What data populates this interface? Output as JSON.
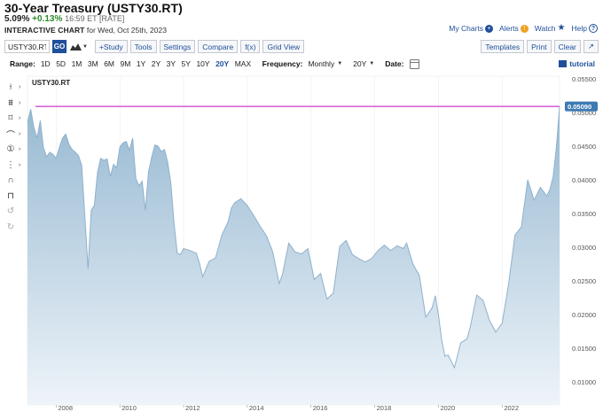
{
  "header": {
    "title": "30-Year Treasury (USTY30.RT)",
    "price": "5.09%",
    "change": "+0.13%",
    "time": "16:59 ET [RATE]",
    "subtitle_bold": "INTERACTIVE CHART",
    "subtitle_rest": "for Wed, Oct 25th, 2023"
  },
  "top_links": {
    "my_charts": "My Charts",
    "alerts": "Alerts",
    "watch": "Watch",
    "help": "Help"
  },
  "toolbar": {
    "symbol_value": "USTY30.RT",
    "go_label": "GO",
    "study_label": "+Study",
    "tools_label": "Tools",
    "settings_label": "Settings",
    "compare_label": "Compare",
    "fx_label": "f(x)",
    "grid_view_label": "Grid View",
    "templates_label": "Templates",
    "print_label": "Print",
    "clear_label": "Clear",
    "expand_label": "↗"
  },
  "range_bar": {
    "range_label": "Range:",
    "ranges": [
      "1D",
      "5D",
      "1M",
      "3M",
      "6M",
      "9M",
      "1Y",
      "2Y",
      "3Y",
      "5Y",
      "10Y",
      "20Y",
      "MAX"
    ],
    "active_range": "20Y",
    "frequency_label": "Frequency:",
    "frequency_value": "Monthly",
    "period_value": "20Y",
    "date_label": "Date:",
    "tutorial_label": "tutorial"
  },
  "left_tools": [
    "crosshair-icon",
    "drawing-tools-icon",
    "shapes-icon",
    "arc-icon",
    "annotation-icon",
    "fibonacci-icon",
    "magnet-icon",
    "lock-icon",
    "undo-icon",
    "redo-icon"
  ],
  "chart_data": {
    "type": "area",
    "symbol_label": "USTY30.RT",
    "x_ticks": [
      "2008",
      "2010",
      "2012",
      "2014",
      "2016",
      "2018",
      "2020",
      "2022"
    ],
    "y_ticks": [
      "0.05500",
      "0.05000",
      "0.04500",
      "0.04000",
      "0.03500",
      "0.03000",
      "0.02500",
      "0.02000",
      "0.01500",
      "0.01000"
    ],
    "ylim": [
      0.01,
      0.055
    ],
    "xlim": [
      2007.1,
      2023.8
    ],
    "last_value_label": "0.05090",
    "last_value": 0.0509,
    "colors": {
      "line": "#8fb1cc",
      "fill_top": "#97b9d2",
      "fill_bottom": "#eef4f9",
      "last_line": "#d45ad4",
      "last_badge": "#3d7ab3"
    },
    "x": [
      2007.1,
      2007.2,
      2007.3,
      2007.4,
      2007.5,
      2007.6,
      2007.7,
      2007.8,
      2007.9,
      2008.0,
      2008.1,
      2008.2,
      2008.3,
      2008.4,
      2008.5,
      2008.6,
      2008.7,
      2008.8,
      2008.9,
      2009.0,
      2009.1,
      2009.2,
      2009.3,
      2009.4,
      2009.5,
      2009.6,
      2009.7,
      2009.8,
      2009.9,
      2010.0,
      2010.1,
      2010.2,
      2010.3,
      2010.4,
      2010.5,
      2010.6,
      2010.7,
      2010.8,
      2010.9,
      2011.0,
      2011.1,
      2011.2,
      2011.3,
      2011.4,
      2011.5,
      2011.6,
      2011.7,
      2011.8,
      2011.9,
      2012.0,
      2012.2,
      2012.4,
      2012.5,
      2012.6,
      2012.8,
      2013.0,
      2013.2,
      2013.4,
      2013.5,
      2013.6,
      2013.8,
      2014.0,
      2014.2,
      2014.4,
      2014.6,
      2014.8,
      2015.0,
      2015.1,
      2015.3,
      2015.5,
      2015.7,
      2015.9,
      2016.1,
      2016.3,
      2016.5,
      2016.7,
      2016.9,
      2017.1,
      2017.3,
      2017.5,
      2017.7,
      2017.9,
      2018.1,
      2018.3,
      2018.5,
      2018.7,
      2018.9,
      2019.0,
      2019.2,
      2019.4,
      2019.6,
      2019.8,
      2019.9,
      2020.0,
      2020.1,
      2020.2,
      2020.3,
      2020.5,
      2020.7,
      2020.9,
      2021.0,
      2021.2,
      2021.4,
      2021.6,
      2021.8,
      2022.0,
      2022.2,
      2022.4,
      2022.6,
      2022.8,
      2023.0,
      2023.2,
      2023.4,
      2023.5,
      2023.6,
      2023.7,
      2023.8
    ],
    "y": [
      0.0485,
      0.0505,
      0.0478,
      0.0462,
      0.0488,
      0.0448,
      0.0434,
      0.0441,
      0.0438,
      0.0432,
      0.0448,
      0.0462,
      0.0468,
      0.0453,
      0.0445,
      0.0441,
      0.0436,
      0.0422,
      0.0345,
      0.0268,
      0.0355,
      0.0362,
      0.0411,
      0.0432,
      0.0429,
      0.0431,
      0.0405,
      0.0423,
      0.0418,
      0.0449,
      0.0455,
      0.0457,
      0.0444,
      0.0462,
      0.0402,
      0.0391,
      0.0398,
      0.0355,
      0.0412,
      0.0434,
      0.0452,
      0.045,
      0.0442,
      0.0445,
      0.0426,
      0.0395,
      0.0335,
      0.0291,
      0.0289,
      0.0298,
      0.0295,
      0.0291,
      0.0276,
      0.0256,
      0.0279,
      0.0284,
      0.0318,
      0.0338,
      0.0358,
      0.0366,
      0.0372,
      0.0362,
      0.0347,
      0.0331,
      0.0317,
      0.0293,
      0.0246,
      0.0259,
      0.0306,
      0.0293,
      0.029,
      0.0298,
      0.0252,
      0.0261,
      0.0223,
      0.0232,
      0.0301,
      0.031,
      0.0289,
      0.0283,
      0.0278,
      0.0283,
      0.0295,
      0.0303,
      0.0295,
      0.0302,
      0.0298,
      0.0306,
      0.0275,
      0.0258,
      0.0196,
      0.021,
      0.0228,
      0.0199,
      0.0162,
      0.0138,
      0.014,
      0.0121,
      0.0158,
      0.0164,
      0.0182,
      0.0229,
      0.0221,
      0.0191,
      0.0174,
      0.0187,
      0.0245,
      0.0318,
      0.033,
      0.04,
      0.037,
      0.0389,
      0.0376,
      0.0386,
      0.0405,
      0.0448,
      0.0509
    ]
  }
}
